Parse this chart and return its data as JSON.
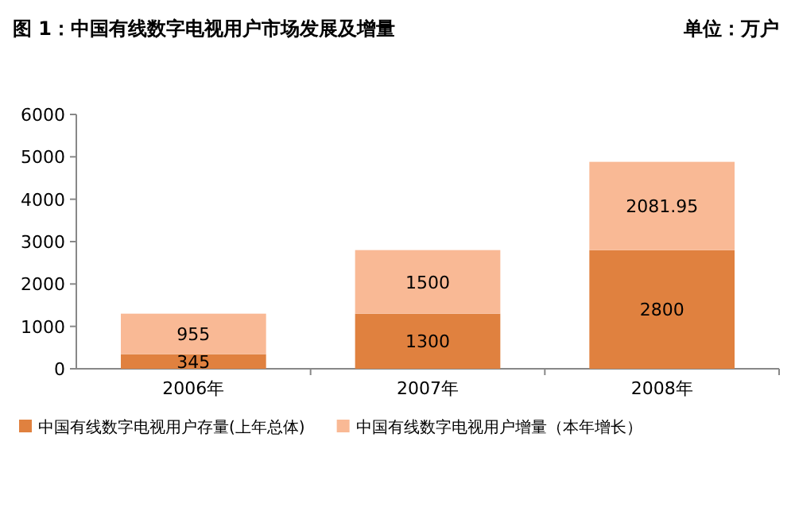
{
  "chart_data": {
    "type": "bar",
    "title": "图 1：中国有线数字电视用户市场发展及增量",
    "subtitle": "单位：万户",
    "categories": [
      "2006年",
      "2007年",
      "2008年"
    ],
    "stacked": true,
    "series": [
      {
        "name": "中国有线数字电视用户存量(上年总体)",
        "color": "#e0813f",
        "values": [
          345,
          1300,
          2800
        ]
      },
      {
        "name": "中国有线数字电视用户增量（本年增长）",
        "color": "#f9b995",
        "values": [
          955,
          1500,
          2081.95
        ]
      }
    ],
    "ylim": [
      0,
      6000
    ],
    "yticks": [
      0,
      1000,
      2000,
      3000,
      4000,
      5000,
      6000
    ],
    "data_labels": true,
    "legend": "bottom",
    "grid": false
  }
}
